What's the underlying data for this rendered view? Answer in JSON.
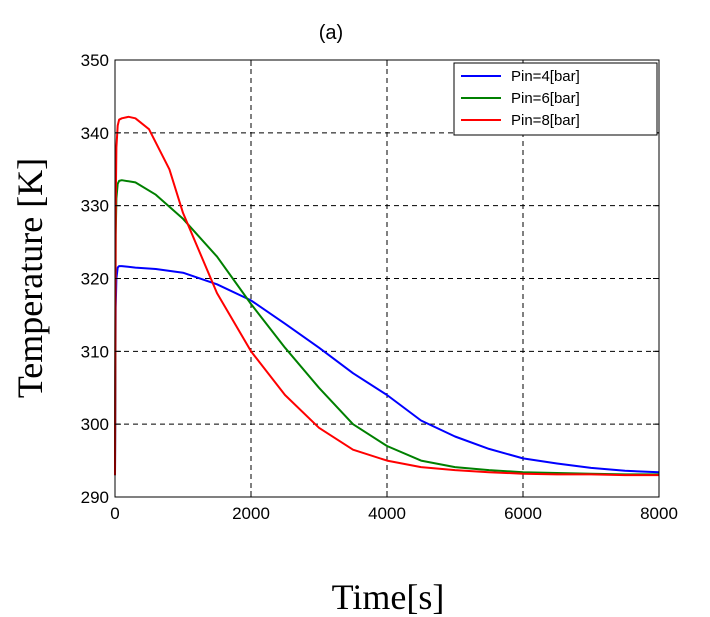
{
  "chart_data": {
    "type": "line",
    "title": "(a)",
    "xlabel": "Time[s]",
    "ylabel": "Temperature [K]",
    "xlim": [
      0,
      8000
    ],
    "ylim": [
      290,
      350
    ],
    "xticks": [
      0,
      2000,
      4000,
      6000,
      8000
    ],
    "yticks": [
      290,
      300,
      310,
      320,
      330,
      340,
      350
    ],
    "grid": true,
    "grid_style": "dashed",
    "legend_position": "top-right",
    "series": [
      {
        "name": "Pin=4[bar]",
        "color": "#0000ff",
        "x": [
          0,
          10,
          20,
          40,
          60,
          100,
          300,
          600,
          1000,
          1500,
          2000,
          2500,
          3000,
          3500,
          4000,
          4500,
          5000,
          5500,
          6000,
          6500,
          7000,
          7500,
          8000
        ],
        "y": [
          293,
          316,
          320,
          321.5,
          321.7,
          321.7,
          321.5,
          321.3,
          320.8,
          319.2,
          317,
          313.8,
          310.5,
          307,
          304,
          300.5,
          298.3,
          296.6,
          295.3,
          294.6,
          294,
          293.6,
          293.4
        ]
      },
      {
        "name": "Pin=6[bar]",
        "color": "#008000",
        "x": [
          0,
          10,
          20,
          40,
          60,
          100,
          300,
          600,
          1000,
          1500,
          2000,
          2500,
          3000,
          3500,
          4000,
          4500,
          5000,
          5500,
          6000,
          6500,
          7000,
          7500,
          8000
        ],
        "y": [
          293,
          326,
          331,
          333,
          333.4,
          333.5,
          333.2,
          331.5,
          328.2,
          323,
          316.5,
          310.5,
          305,
          300,
          297,
          295,
          294.1,
          293.7,
          293.4,
          293.3,
          293.2,
          293.1,
          293.1
        ]
      },
      {
        "name": "Pin=8[bar]",
        "color": "#ff0000",
        "x": [
          0,
          10,
          20,
          40,
          60,
          100,
          200,
          300,
          500,
          800,
          1000,
          1500,
          2000,
          2500,
          3000,
          3500,
          4000,
          4500,
          5000,
          5500,
          6000,
          6500,
          7000,
          7500,
          8000
        ],
        "y": [
          293,
          330,
          338,
          341,
          341.8,
          342,
          342.2,
          342,
          340.5,
          335,
          329,
          318,
          310,
          304,
          299.5,
          296.5,
          295,
          294.1,
          293.7,
          293.4,
          293.2,
          293.1,
          293.1,
          293,
          293
        ]
      }
    ]
  }
}
